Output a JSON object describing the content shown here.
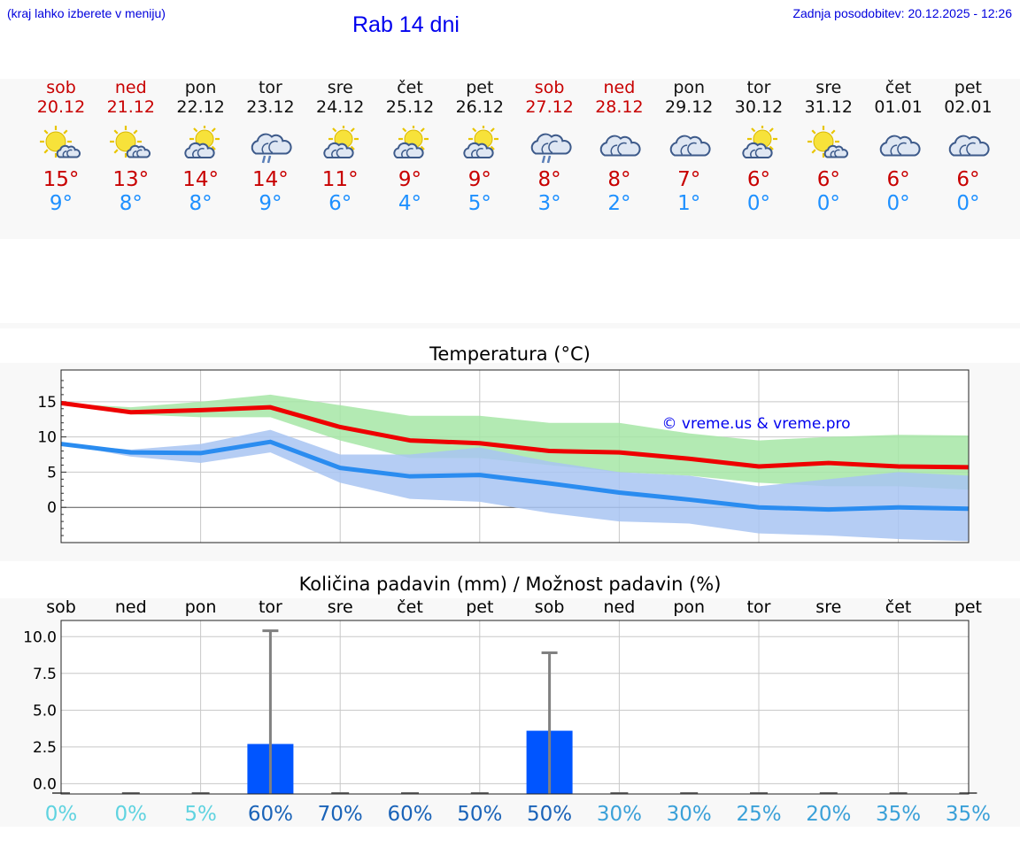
{
  "header": {
    "hint": "(kraj lahko izberete v meniju)",
    "title": "Rab 14 dni",
    "updated": "Zadnja posodobitev: 20.12.2025 - 12:26"
  },
  "colors": {
    "tmax": "#c80000",
    "tmin": "#1e90ff",
    "weekend": "#c80000",
    "link": "#0000ee"
  },
  "days": [
    {
      "name": "sob",
      "date": "20.12",
      "icon": "partly-sunny-icon",
      "max": "15°",
      "min": "9°",
      "weekend": true
    },
    {
      "name": "ned",
      "date": "21.12",
      "icon": "partly-sunny-icon",
      "max": "13°",
      "min": "8°",
      "weekend": true
    },
    {
      "name": "pon",
      "date": "22.12",
      "icon": "sunny-cloud-icon",
      "max": "14°",
      "min": "8°",
      "weekend": false
    },
    {
      "name": "tor",
      "date": "23.12",
      "icon": "rain-cloud-icon",
      "max": "14°",
      "min": "9°",
      "weekend": false
    },
    {
      "name": "sre",
      "date": "24.12",
      "icon": "sunny-cloud-icon",
      "max": "11°",
      "min": "6°",
      "weekend": false
    },
    {
      "name": "čet",
      "date": "25.12",
      "icon": "sunny-cloud-icon",
      "max": "9°",
      "min": "4°",
      "weekend": false
    },
    {
      "name": "pet",
      "date": "26.12",
      "icon": "sunny-cloud-icon",
      "max": "9°",
      "min": "5°",
      "weekend": false
    },
    {
      "name": "sob",
      "date": "27.12",
      "icon": "rain-cloud-icon",
      "max": "8°",
      "min": "3°",
      "weekend": true
    },
    {
      "name": "ned",
      "date": "28.12",
      "icon": "cloudy-icon",
      "max": "8°",
      "min": "2°",
      "weekend": true
    },
    {
      "name": "pon",
      "date": "29.12",
      "icon": "cloudy-icon",
      "max": "7°",
      "min": "1°",
      "weekend": false
    },
    {
      "name": "tor",
      "date": "30.12",
      "icon": "sunny-cloud-icon",
      "max": "6°",
      "min": "0°",
      "weekend": false
    },
    {
      "name": "sre",
      "date": "31.12",
      "icon": "partly-sunny-icon",
      "max": "6°",
      "min": "0°",
      "weekend": false
    },
    {
      "name": "čet",
      "date": "01.01",
      "icon": "cloudy-icon",
      "max": "6°",
      "min": "0°",
      "weekend": false
    },
    {
      "name": "pet",
      "date": "02.01",
      "icon": "cloudy-icon",
      "max": "6°",
      "min": "0°",
      "weekend": false
    }
  ],
  "chart_data": [
    {
      "type": "line",
      "title": "Temperatura (°C)",
      "watermark": "© vreme.us & vreme.pro",
      "xlabel": "",
      "ylabel": "",
      "ylim": [
        -5,
        19.5
      ],
      "yticks": [
        0,
        5,
        10,
        15
      ],
      "x": [
        0,
        1,
        2,
        3,
        4,
        5,
        6,
        7,
        8,
        9,
        10,
        11,
        12,
        13
      ],
      "series": [
        {
          "name": "max",
          "color": "#ee0000",
          "values": [
            14.8,
            13.5,
            13.8,
            14.2,
            11.4,
            9.5,
            9.1,
            8.0,
            7.8,
            6.9,
            5.8,
            6.3,
            5.8,
            5.7
          ]
        },
        {
          "name": "min",
          "color": "#2a8cf0",
          "values": [
            9.0,
            7.8,
            7.7,
            9.3,
            5.6,
            4.4,
            4.6,
            3.4,
            2.1,
            1.1,
            0.0,
            -0.3,
            0.0,
            -0.2
          ]
        }
      ],
      "bands": [
        {
          "name": "max-range",
          "color": "#a6e6a6",
          "low": [
            14.8,
            13.2,
            12.8,
            12.8,
            9.5,
            7.0,
            7.0,
            6.0,
            5.0,
            4.5,
            3.5,
            3.0,
            3.0,
            2.5
          ],
          "high": [
            14.8,
            14.2,
            15.0,
            16.0,
            14.5,
            13.0,
            13.0,
            12.0,
            12.0,
            10.5,
            9.5,
            10.0,
            10.3,
            10.2
          ]
        },
        {
          "name": "min-range",
          "color": "#a8c4f2",
          "low": [
            9.0,
            7.2,
            6.3,
            7.8,
            3.5,
            1.2,
            0.8,
            -0.8,
            -2.0,
            -2.3,
            -3.7,
            -4.0,
            -4.5,
            -4.8
          ],
          "high": [
            9.0,
            8.2,
            9.0,
            11.0,
            7.5,
            7.5,
            8.5,
            6.5,
            5.0,
            4.5,
            3.0,
            4.0,
            5.0,
            4.5
          ]
        }
      ]
    },
    {
      "type": "bar",
      "title": "Količina padavin (mm) / Možnost padavin (%)",
      "categories": [
        "sob",
        "ned",
        "pon",
        "tor",
        "sre",
        "čet",
        "pet",
        "sob",
        "ned",
        "pon",
        "tor",
        "sre",
        "čet",
        "pet"
      ],
      "ylim": [
        -0.7,
        11.1
      ],
      "yticks": [
        "0.0",
        "2.5",
        "5.0",
        "7.5",
        "10.0"
      ],
      "values": [
        0,
        0,
        0,
        2.7,
        0,
        0,
        0,
        3.6,
        0,
        0,
        0,
        0,
        0,
        0
      ],
      "errors_max": [
        0,
        0,
        0,
        10.4,
        0,
        0,
        0,
        8.9,
        0,
        0,
        0,
        0,
        0,
        0
      ],
      "probability": [
        "0%",
        "0%",
        "5%",
        "60%",
        "70%",
        "60%",
        "50%",
        "50%",
        "30%",
        "30%",
        "25%",
        "20%",
        "35%",
        "35%"
      ],
      "probability_colors": [
        "#5fd3e0",
        "#5fd3e0",
        "#5fd3e0",
        "#1a63b8",
        "#1a63b8",
        "#1a63b8",
        "#1a63b8",
        "#1a63b8",
        "#3aa0d8",
        "#3aa0d8",
        "#3aa0d8",
        "#3aa0d8",
        "#3aa0d8",
        "#3aa0d8"
      ],
      "bar_color": "#0055ff",
      "error_color": "#808080"
    }
  ]
}
